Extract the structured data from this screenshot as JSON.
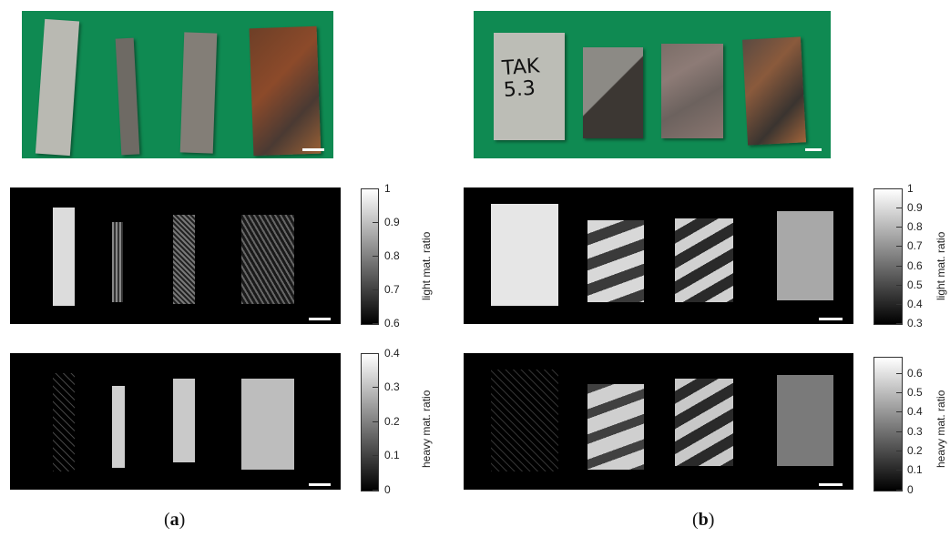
{
  "figure": {
    "panel_a": {
      "caption_open": "(",
      "caption_letter": "a",
      "caption_close": ")",
      "light_colorbar": {
        "label": "light mat. ratio",
        "ticks": [
          "1",
          "0.9",
          "0.8",
          "0.7",
          "0.6"
        ]
      },
      "heavy_colorbar": {
        "label": "heavy mat. ratio",
        "ticks": [
          "0.4",
          "0.3",
          "0.2",
          "0.1",
          "0"
        ]
      }
    },
    "panel_b": {
      "caption_open": "(",
      "caption_letter": "b",
      "caption_close": ")",
      "specimen_label": "TAK 5.3",
      "light_colorbar": {
        "label": "light mat. ratio",
        "ticks": [
          "1",
          "0.9",
          "0.8",
          "0.7",
          "0.6",
          "0.5",
          "0.4",
          "0.3"
        ]
      },
      "heavy_colorbar": {
        "label": "heavy mat. ratio",
        "ticks": [
          "0.6",
          "0.5",
          "0.4",
          "0.3",
          "0.2",
          "0.1",
          "0"
        ]
      }
    },
    "colors": {
      "photo_background": "#0f8a52",
      "map_background": "#000000"
    }
  }
}
